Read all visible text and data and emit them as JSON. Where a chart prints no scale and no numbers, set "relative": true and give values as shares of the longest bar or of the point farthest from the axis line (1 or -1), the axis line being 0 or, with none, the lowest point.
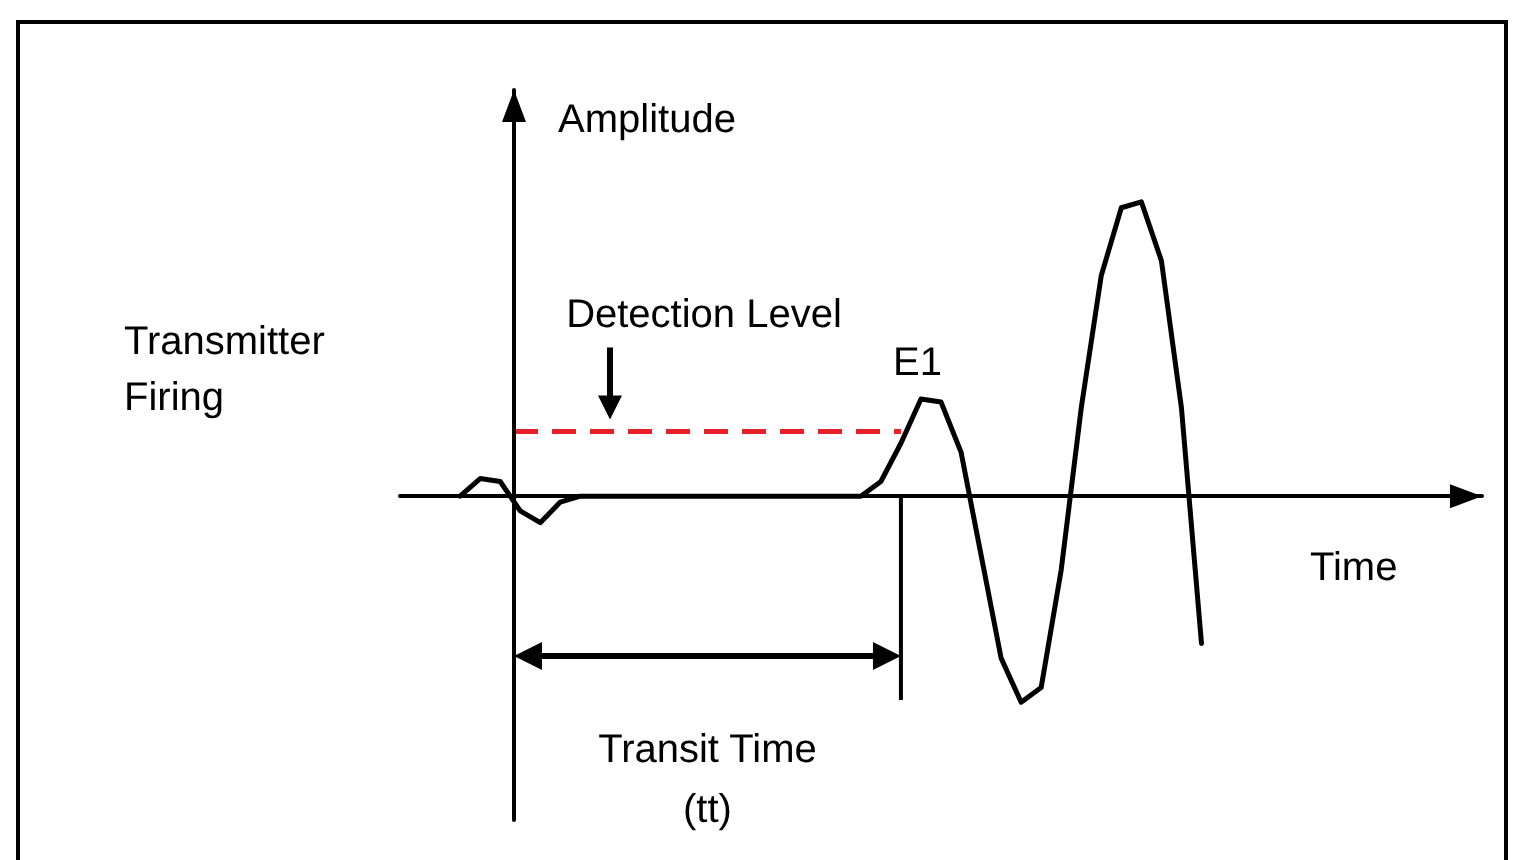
{
  "chart_data": {
    "type": "line",
    "relative": true,
    "xlabel": "Time",
    "ylabel": "Amplitude",
    "categories": [
      null,
      null,
      null,
      null,
      null,
      null,
      null,
      null,
      null,
      null,
      null,
      null,
      null,
      null,
      null,
      null,
      null,
      null,
      null,
      null,
      null,
      null,
      null,
      null,
      null,
      null,
      null,
      null,
      null,
      null,
      null,
      null,
      null,
      null,
      null,
      null,
      null,
      null,
      null,
      null,
      null,
      null,
      null,
      null,
      null,
      null,
      null,
      null,
      null,
      null,
      null,
      null,
      null,
      null,
      null
    ],
    "values": [
      null,
      null,
      null,
      0,
      0.06,
      0.05,
      -0.05,
      -0.09,
      -0.02,
      0,
      0,
      0,
      0,
      0,
      0,
      0,
      0,
      0,
      0,
      0,
      0,
      0,
      0,
      0,
      0.05,
      0.18,
      0.33,
      0.32,
      0.15,
      -0.2,
      -0.55,
      -0.7,
      -0.65,
      -0.25,
      0.3,
      0.75,
      0.98,
      1,
      0.8,
      0.3,
      -0.5,
      null,
      null,
      null,
      null,
      null,
      null,
      null,
      null,
      null,
      null,
      null,
      null,
      null,
      null
    ],
    "color": "#000000",
    "marker": "none",
    "line_style": "solid",
    "grid": false,
    "ref_lines": [
      {
        "axis": "y",
        "value": 0.22,
        "label": "Detection Level",
        "color": "#e8202a",
        "line_style": "dashed"
      }
    ],
    "annotations": [
      "Transmitter\nFiring",
      "E1",
      "Transit Time\n(tt)"
    ]
  }
}
